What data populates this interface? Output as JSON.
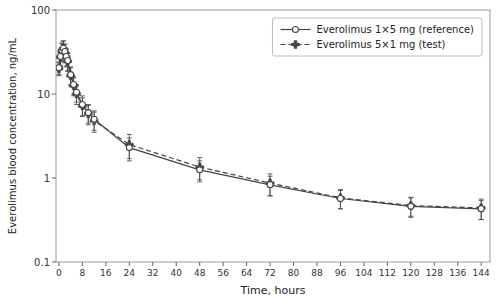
{
  "chart_data": {
    "type": "line",
    "xlabel": "Time, hours",
    "ylabel": "Everolimus blood concentration, ng/mL",
    "x": [
      0,
      0.5,
      1,
      1.5,
      2,
      2.5,
      3,
      4,
      5,
      6,
      8,
      10,
      12,
      24,
      48,
      72,
      96,
      120,
      144
    ],
    "series": [
      {
        "name": "Everolimus 1×5 mg (reference)",
        "color": "#444444",
        "marker": "circle",
        "line_style": "solid",
        "values": [
          20.5,
          28.0,
          33.0,
          35.0,
          32.0,
          28.0,
          25.0,
          17.0,
          13.0,
          10.5,
          7.5,
          6.0,
          5.0,
          2.3,
          1.25,
          0.83,
          0.57,
          0.46,
          0.43
        ],
        "error": [
          3.5,
          6.0,
          7.5,
          8.0,
          7.5,
          6.5,
          6.0,
          4.0,
          3.0,
          2.5,
          2.0,
          1.5,
          1.3,
          0.7,
          0.35,
          0.22,
          0.14,
          0.12,
          0.11
        ]
      },
      {
        "name": "Everolimus 5×1 mg (test)",
        "color": "#444444",
        "marker": "plus",
        "line_style": "dashed",
        "values": [
          20.0,
          27.5,
          32.0,
          34.5,
          31.0,
          27.5,
          24.5,
          16.5,
          12.5,
          10.0,
          7.2,
          5.8,
          4.8,
          2.5,
          1.35,
          0.87,
          0.58,
          0.47,
          0.44
        ],
        "error": [
          3.5,
          6.0,
          7.5,
          8.0,
          7.5,
          6.5,
          6.0,
          4.0,
          3.0,
          2.5,
          1.8,
          1.5,
          1.3,
          0.8,
          0.4,
          0.25,
          0.15,
          0.12,
          0.12
        ]
      }
    ],
    "xlim": [
      -1,
      147
    ],
    "xticks": [
      0,
      8,
      16,
      24,
      32,
      40,
      48,
      56,
      64,
      72,
      80,
      88,
      96,
      104,
      112,
      120,
      128,
      136,
      144
    ],
    "ylim": [
      0.1,
      100
    ],
    "yticks": [
      0.1,
      1,
      10,
      100
    ],
    "log": "y",
    "legend": "upper right"
  }
}
